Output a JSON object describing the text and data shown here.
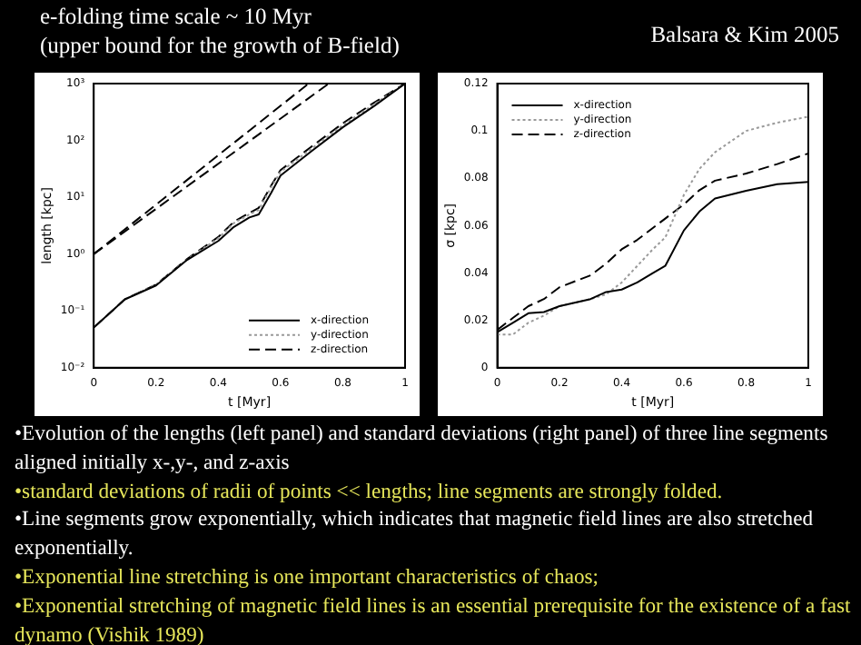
{
  "chart_data": [
    {
      "type": "line",
      "title": "e-folding time scale ~ 10 Myr",
      "subtitle": "(upper bound for the growth of B-field)",
      "xlabel": "t [Myr]",
      "ylabel": "length [kpc]",
      "log": "y",
      "grid": false,
      "legend": "bottom right",
      "marker": "none",
      "xlim": [
        0,
        1
      ],
      "xticks": [
        0,
        0.2,
        0.4,
        0.6,
        0.8,
        1
      ],
      "ylim": [
        0.01,
        1000
      ],
      "yticks": [
        {
          "value": 0.01,
          "label": "10⁻²"
        },
        {
          "value": 0.1,
          "label": "10⁻¹"
        },
        {
          "value": 1,
          "label": "10⁰"
        },
        {
          "value": 10,
          "label": "10¹"
        },
        {
          "value": 100,
          "label": "10²"
        },
        {
          "value": 1000,
          "label": "10³"
        }
      ],
      "x": [
        0,
        0.1,
        0.2,
        0.3,
        0.4,
        0.45,
        0.5,
        0.53,
        0.57,
        0.6,
        0.7,
        0.8,
        0.9,
        1
      ],
      "series": [
        {
          "name": "x-direction",
          "color": "#000000",
          "line_style": "solid",
          "values": [
            0.051,
            0.16,
            0.28,
            0.79,
            1.7,
            3.0,
            4.4,
            5.0,
            12,
            24,
            65,
            170,
            400,
            1000
          ]
        },
        {
          "name": "y-direction",
          "color": "#999999",
          "line_style": "dotted",
          "values": [
            0.051,
            0.16,
            0.29,
            0.8,
            1.9,
            3.5,
            5.0,
            6.0,
            15,
            28,
            72,
            185,
            430,
            1000
          ]
        },
        {
          "name": "z-direction",
          "color": "#000000",
          "line_style": "dashed",
          "values": [
            0.051,
            0.16,
            0.29,
            0.82,
            2.0,
            3.7,
            5.3,
            6.5,
            16,
            30,
            78,
            200,
            460,
            1000
          ]
        },
        {
          "color": "#000000",
          "line_style": "dashed",
          "x": [
            0,
            0.69
          ],
          "values": [
            1,
            1000
          ]
        },
        {
          "color": "#000000",
          "line_style": "dashed",
          "x": [
            0,
            0.755
          ],
          "values": [
            1,
            1000
          ]
        }
      ],
      "annotations": [
        "•Evolution of the lengths (left panel) and standard deviations (right panel) of three line segments aligned initially x-,y-, and z-axis",
        "•standard deviations of radii of points << lengths; line segments are strongly folded.",
        "•Line segments grow exponentially, which indicates that magnetic field lines are also stretched exponentially.",
        "•Exponential line stretching is one important characteristics of chaos;",
        "•Exponential stretching of magnetic field lines is an essential prerequisite for the existence of a fast dynamo (Vishik 1989)"
      ]
    },
    {
      "type": "line",
      "xlabel": "t [Myr]",
      "ylabel": "σ [kpc]",
      "grid": false,
      "legend": "top left",
      "marker": "none",
      "xlim": [
        0,
        1
      ],
      "xticks": [
        0,
        0.2,
        0.4,
        0.6,
        0.8,
        1
      ],
      "ylim": [
        0,
        0.12
      ],
      "yticks": [
        0,
        0.02,
        0.04,
        0.06,
        0.08,
        0.1,
        0.12
      ],
      "x": [
        0,
        0.05,
        0.1,
        0.15,
        0.2,
        0.3,
        0.35,
        0.4,
        0.45,
        0.5,
        0.54,
        0.6,
        0.65,
        0.7,
        0.8,
        0.9,
        1
      ],
      "series": [
        {
          "name": "x-direction",
          "color": "#000000",
          "line_style": "solid",
          "values": [
            0.015,
            0.019,
            0.023,
            0.0235,
            0.026,
            0.029,
            0.032,
            0.033,
            0.036,
            0.04,
            0.043,
            0.058,
            0.066,
            0.0715,
            0.0747,
            0.0775,
            0.0785
          ]
        },
        {
          "name": "y-direction",
          "color": "#999999",
          "line_style": "dotted",
          "values": [
            0.014,
            0.014,
            0.019,
            0.022,
            0.026,
            0.029,
            0.031,
            0.036,
            0.043,
            0.05,
            0.055,
            0.073,
            0.084,
            0.091,
            0.1,
            0.1035,
            0.106
          ]
        },
        {
          "name": "z-direction",
          "color": "#000000",
          "line_style": "dashed",
          "values": [
            0.016,
            0.021,
            0.026,
            0.029,
            0.034,
            0.039,
            0.044,
            0.05,
            0.054,
            0.059,
            0.063,
            0.069,
            0.075,
            0.079,
            0.082,
            0.086,
            0.0905
          ]
        }
      ],
      "annotations": [
        "Balsara & Kim 2005"
      ]
    }
  ]
}
